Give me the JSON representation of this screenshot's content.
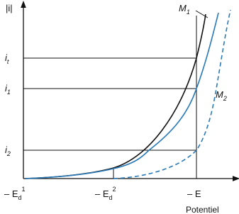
{
  "axes": {
    "y_label": "|i|",
    "x_label": "Potentiel"
  },
  "curves": [
    {
      "name": {
        "base": "M",
        "sub": "1"
      }
    },
    {
      "name": {
        "base": "M",
        "sub": "2"
      }
    }
  ],
  "y_levels": [
    {
      "base": "i",
      "sub": "t"
    },
    {
      "base": "i",
      "sub": "1"
    },
    {
      "base": "i",
      "sub": "2"
    }
  ],
  "x_levels": [
    {
      "base": "– E",
      "sub": "d",
      "sup": "1"
    },
    {
      "base": "– E",
      "sub": "d",
      "sup": "2"
    },
    {
      "base": "– E"
    }
  ]
}
